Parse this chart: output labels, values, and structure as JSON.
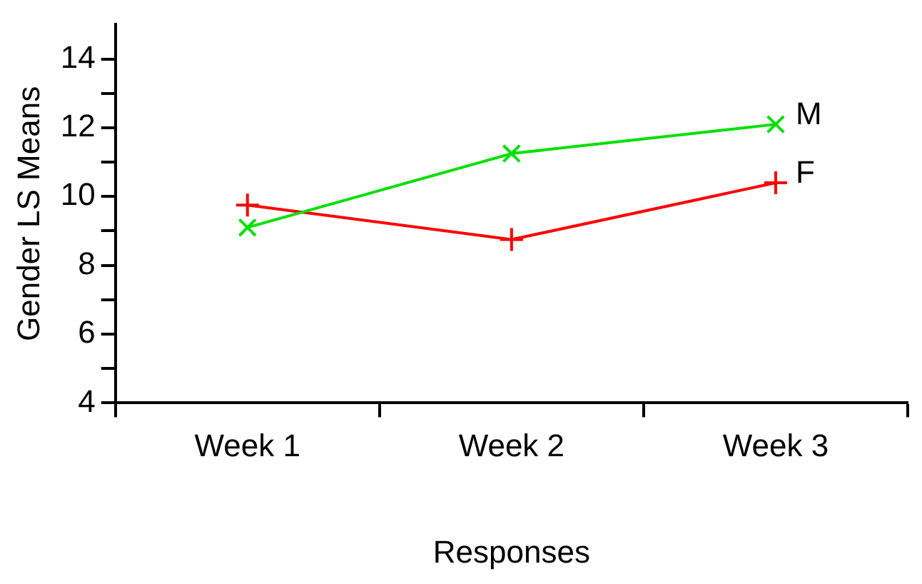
{
  "chart_data": {
    "type": "line",
    "xlabel": "Responses",
    "ylabel": "Gender LS Means",
    "categories": [
      "Week 1",
      "Week 2",
      "Week 3"
    ],
    "series": [
      {
        "name": "M",
        "color": "#00e000",
        "values": [
          9.1,
          11.25,
          12.1
        ],
        "marker": "cross"
      },
      {
        "name": "F",
        "color": "#ff0000",
        "values": [
          9.75,
          8.75,
          10.4
        ],
        "marker": "plus"
      }
    ],
    "ylim": [
      4,
      15
    ],
    "yticks": [
      4,
      {
        "value": 5,
        "label": null
      },
      6,
      {
        "value": 7,
        "label": null
      },
      8,
      {
        "value": 9,
        "label": null
      },
      10,
      {
        "value": 11,
        "label": null
      },
      12,
      {
        "value": 13,
        "label": null
      },
      14
    ],
    "grid": false,
    "legend": false,
    "line_style": "solid"
  }
}
